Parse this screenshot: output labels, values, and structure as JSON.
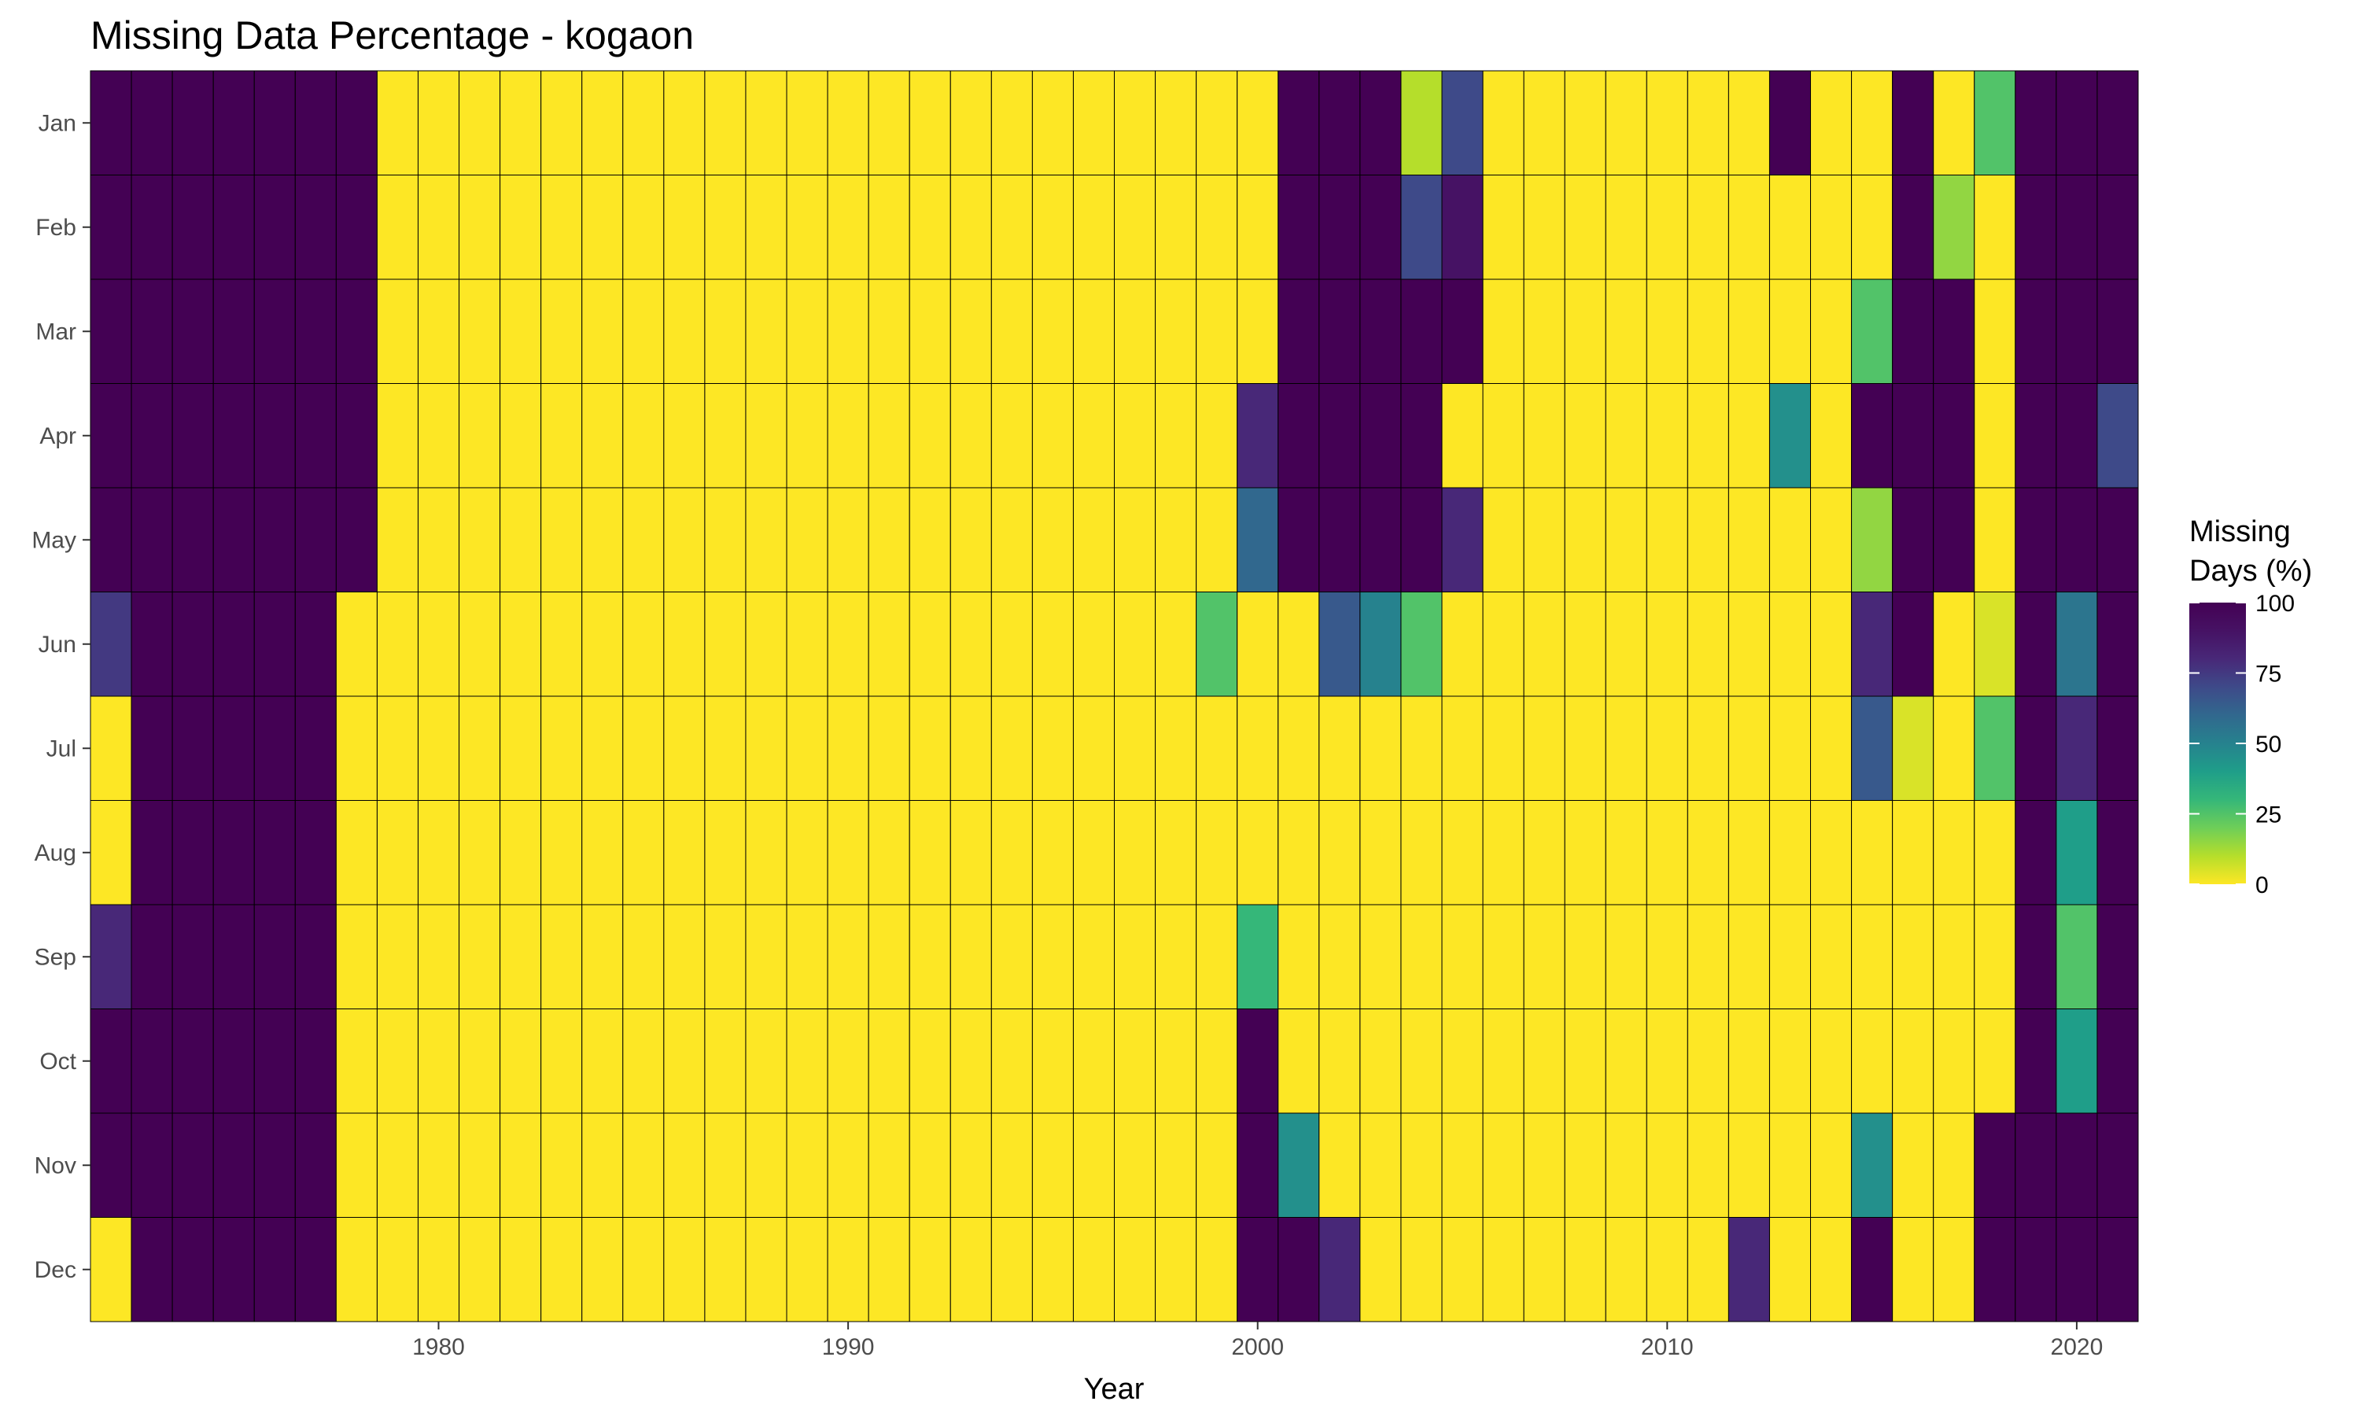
{
  "chart_data": {
    "type": "heatmap",
    "title": "Missing Data Percentage - kogaon",
    "xlabel": "Year",
    "ylabel": "",
    "x_ticks": [
      1980,
      1990,
      2000,
      2010,
      2020
    ],
    "years": [
      1972,
      1973,
      1974,
      1975,
      1976,
      1977,
      1978,
      1979,
      1980,
      1981,
      1982,
      1983,
      1984,
      1985,
      1986,
      1987,
      1988,
      1989,
      1990,
      1991,
      1992,
      1993,
      1994,
      1995,
      1996,
      1997,
      1998,
      1999,
      2000,
      2001,
      2002,
      2003,
      2004,
      2005,
      2006,
      2007,
      2008,
      2009,
      2010,
      2011,
      2012,
      2013,
      2014,
      2015,
      2016,
      2017,
      2018,
      2019,
      2020,
      2021
    ],
    "months": [
      "Jan",
      "Feb",
      "Mar",
      "Apr",
      "May",
      "Jun",
      "Jul",
      "Aug",
      "Sep",
      "Oct",
      "Nov",
      "Dec"
    ],
    "values": {
      "Jan": [
        100,
        100,
        100,
        100,
        100,
        100,
        100,
        0,
        0,
        0,
        0,
        0,
        0,
        0,
        0,
        0,
        0,
        0,
        0,
        0,
        0,
        0,
        0,
        0,
        0,
        0,
        0,
        0,
        0,
        100,
        100,
        100,
        10,
        70,
        0,
        0,
        0,
        0,
        0,
        0,
        0,
        100,
        0,
        0,
        100,
        0,
        25,
        100,
        100,
        100
      ],
      "Feb": [
        100,
        100,
        100,
        100,
        100,
        100,
        100,
        0,
        0,
        0,
        0,
        0,
        0,
        0,
        0,
        0,
        0,
        0,
        0,
        0,
        0,
        0,
        0,
        0,
        0,
        0,
        0,
        0,
        0,
        100,
        100,
        100,
        70,
        90,
        0,
        0,
        0,
        0,
        0,
        0,
        0,
        0,
        0,
        0,
        100,
        15,
        0,
        100,
        100,
        100
      ],
      "Mar": [
        100,
        100,
        100,
        100,
        100,
        100,
        100,
        0,
        0,
        0,
        0,
        0,
        0,
        0,
        0,
        0,
        0,
        0,
        0,
        0,
        0,
        0,
        0,
        0,
        0,
        0,
        0,
        0,
        0,
        100,
        100,
        100,
        100,
        100,
        0,
        0,
        0,
        0,
        0,
        0,
        0,
        0,
        0,
        25,
        100,
        100,
        0,
        100,
        100,
        100
      ],
      "Apr": [
        100,
        100,
        100,
        100,
        100,
        100,
        100,
        0,
        0,
        0,
        0,
        0,
        0,
        0,
        0,
        0,
        0,
        0,
        0,
        0,
        0,
        0,
        0,
        0,
        0,
        0,
        0,
        0,
        80,
        100,
        100,
        100,
        100,
        0,
        0,
        0,
        0,
        0,
        0,
        0,
        0,
        45,
        0,
        100,
        100,
        100,
        0,
        100,
        100,
        70
      ],
      "May": [
        100,
        100,
        100,
        100,
        100,
        100,
        100,
        0,
        0,
        0,
        0,
        0,
        0,
        0,
        0,
        0,
        0,
        0,
        0,
        0,
        0,
        0,
        0,
        0,
        0,
        0,
        0,
        0,
        60,
        100,
        100,
        100,
        100,
        80,
        0,
        0,
        0,
        0,
        0,
        0,
        0,
        0,
        0,
        15,
        100,
        100,
        0,
        100,
        100,
        100
      ],
      "Jun": [
        75,
        100,
        100,
        100,
        100,
        100,
        0,
        0,
        0,
        0,
        0,
        0,
        0,
        0,
        0,
        0,
        0,
        0,
        0,
        0,
        0,
        0,
        0,
        0,
        0,
        0,
        0,
        25,
        0,
        0,
        65,
        50,
        25,
        0,
        0,
        0,
        0,
        0,
        0,
        0,
        0,
        0,
        0,
        80,
        100,
        0,
        5,
        100,
        55,
        100
      ],
      "Jul": [
        0,
        100,
        100,
        100,
        100,
        100,
        0,
        0,
        0,
        0,
        0,
        0,
        0,
        0,
        0,
        0,
        0,
        0,
        0,
        0,
        0,
        0,
        0,
        0,
        0,
        0,
        0,
        0,
        0,
        0,
        0,
        0,
        0,
        0,
        0,
        0,
        0,
        0,
        0,
        0,
        0,
        0,
        0,
        65,
        5,
        0,
        25,
        100,
        80,
        100
      ],
      "Aug": [
        0,
        100,
        100,
        100,
        100,
        100,
        0,
        0,
        0,
        0,
        0,
        0,
        0,
        0,
        0,
        0,
        0,
        0,
        0,
        0,
        0,
        0,
        0,
        0,
        0,
        0,
        0,
        0,
        0,
        0,
        0,
        0,
        0,
        0,
        0,
        0,
        0,
        0,
        0,
        0,
        0,
        0,
        0,
        0,
        0,
        0,
        0,
        100,
        40,
        100
      ],
      "Sep": [
        80,
        100,
        100,
        100,
        100,
        100,
        0,
        0,
        0,
        0,
        0,
        0,
        0,
        0,
        0,
        0,
        0,
        0,
        0,
        0,
        0,
        0,
        0,
        0,
        0,
        0,
        0,
        0,
        30,
        0,
        0,
        0,
        0,
        0,
        0,
        0,
        0,
        0,
        0,
        0,
        0,
        0,
        0,
        0,
        0,
        0,
        0,
        100,
        25,
        100
      ],
      "Oct": [
        100,
        100,
        100,
        100,
        100,
        100,
        0,
        0,
        0,
        0,
        0,
        0,
        0,
        0,
        0,
        0,
        0,
        0,
        0,
        0,
        0,
        0,
        0,
        0,
        0,
        0,
        0,
        0,
        100,
        0,
        0,
        0,
        0,
        0,
        0,
        0,
        0,
        0,
        0,
        0,
        0,
        0,
        0,
        0,
        0,
        0,
        0,
        100,
        40,
        100
      ],
      "Nov": [
        100,
        100,
        100,
        100,
        100,
        100,
        0,
        0,
        0,
        0,
        0,
        0,
        0,
        0,
        0,
        0,
        0,
        0,
        0,
        0,
        0,
        0,
        0,
        0,
        0,
        0,
        0,
        0,
        100,
        45,
        0,
        0,
        0,
        0,
        0,
        0,
        0,
        0,
        0,
        0,
        0,
        0,
        0,
        45,
        0,
        0,
        100,
        100,
        100,
        100
      ],
      "Dec": [
        0,
        100,
        100,
        100,
        100,
        100,
        0,
        0,
        0,
        0,
        0,
        0,
        0,
        0,
        0,
        0,
        0,
        0,
        0,
        0,
        0,
        0,
        0,
        0,
        0,
        0,
        0,
        0,
        100,
        100,
        80,
        0,
        0,
        0,
        0,
        0,
        0,
        0,
        0,
        0,
        80,
        0,
        0,
        100,
        0,
        0,
        100,
        100,
        100,
        100
      ]
    },
    "legend": {
      "title_line1": "Missing",
      "title_line2": "Days (%)",
      "ticks": [
        100,
        75,
        50,
        25,
        0
      ],
      "range": [
        0,
        100
      ],
      "placement": "right"
    },
    "colormap": "viridis-reversed",
    "grid": false
  }
}
